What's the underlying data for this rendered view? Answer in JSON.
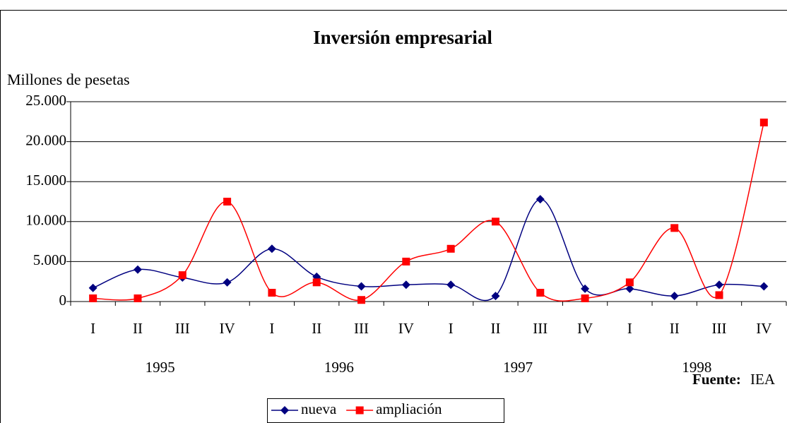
{
  "chart_data": {
    "type": "line",
    "title": "Inversión empresarial",
    "y_label": "Millones de pesetas",
    "categories": [
      "I",
      "II",
      "III",
      "IV",
      "I",
      "II",
      "III",
      "IV",
      "I",
      "II",
      "III",
      "IV",
      "I",
      "II",
      "III",
      "IV"
    ],
    "years": [
      "1995",
      "1996",
      "1997",
      "1998"
    ],
    "series": [
      {
        "name": "nueva",
        "color": "#000080",
        "marker": "diamond",
        "values": [
          1700,
          4000,
          3000,
          2400,
          6600,
          3100,
          1900,
          2100,
          2100,
          700,
          12800,
          1600,
          1600,
          700,
          2100,
          1900
        ]
      },
      {
        "name": "ampliación",
        "color": "#ff0000",
        "marker": "square",
        "values": [
          400,
          400,
          3300,
          12500,
          1100,
          2400,
          200,
          5000,
          6600,
          10000,
          1100,
          400,
          2400,
          9200,
          800,
          22400
        ]
      }
    ],
    "ylim": [
      0,
      25000
    ],
    "yticks": [
      0,
      {
        "value": 5000,
        "label": "5.000"
      },
      {
        "value": 10000,
        "label": "10.000"
      },
      {
        "value": 15000,
        "label": "15.000"
      },
      {
        "value": 20000,
        "label": "20.000"
      },
      {
        "value": 25000,
        "label": "25.000"
      }
    ],
    "grid": true,
    "legend": "bottom",
    "source_label": "Fuente:",
    "source": "IEA"
  }
}
